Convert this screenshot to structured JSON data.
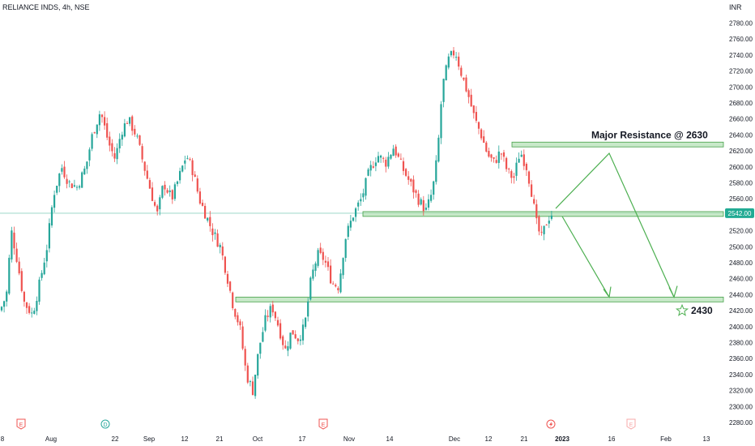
{
  "header": {
    "symbol_title": "RELIANCE INDS, 4h, NSE",
    "currency": "INR"
  },
  "colors": {
    "up": "#26a69a",
    "down": "#ef5350",
    "zone_fill": "#b2dfb4",
    "zone_stroke": "#43a047",
    "arrow": "#4caf50",
    "price_badge": "#22ab94",
    "axis_text": "#131722",
    "price_line": "#8fd3c0"
  },
  "chart_data": {
    "type": "candlestick",
    "title": "RELIANCE INDS, 4h, NSE",
    "y_unit": "INR",
    "ylim": [
      2272,
      2790
    ],
    "y_ticks": [
      2280,
      2300,
      2320,
      2340,
      2360,
      2380,
      2400,
      2420,
      2440,
      2460,
      2480,
      2500,
      2520,
      2540,
      2560,
      2580,
      2600,
      2620,
      2640,
      2660,
      2680,
      2700,
      2720,
      2740,
      2760,
      2780
    ],
    "x_ticks": [
      "8",
      "Aug",
      "22",
      "Sep",
      "12",
      "21",
      "Oct",
      "17",
      "Nov",
      "14",
      "Dec",
      "12",
      "21",
      "2023",
      "16",
      "Feb",
      "13"
    ],
    "last_price": {
      "value": 2542,
      "label": "2542.00"
    },
    "close_path": [
      [
        0,
        2420
      ],
      [
        8,
        2440
      ],
      [
        14,
        2520
      ],
      [
        20,
        2490
      ],
      [
        30,
        2430
      ],
      [
        40,
        2415
      ],
      [
        48,
        2450
      ],
      [
        58,
        2500
      ],
      [
        66,
        2565
      ],
      [
        76,
        2600
      ],
      [
        85,
        2580
      ],
      [
        95,
        2575
      ],
      [
        106,
        2600
      ],
      [
        114,
        2640
      ],
      [
        124,
        2670
      ],
      [
        134,
        2630
      ],
      [
        142,
        2610
      ],
      [
        150,
        2645
      ],
      [
        158,
        2660
      ],
      [
        168,
        2640
      ],
      [
        178,
        2600
      ],
      [
        186,
        2570
      ],
      [
        194,
        2540
      ],
      [
        202,
        2580
      ],
      [
        212,
        2560
      ],
      [
        222,
        2590
      ],
      [
        230,
        2615
      ],
      [
        238,
        2595
      ],
      [
        246,
        2560
      ],
      [
        254,
        2540
      ],
      [
        262,
        2520
      ],
      [
        272,
        2500
      ],
      [
        280,
        2465
      ],
      [
        288,
        2425
      ],
      [
        296,
        2400
      ],
      [
        304,
        2340
      ],
      [
        312,
        2320
      ],
      [
        320,
        2375
      ],
      [
        328,
        2410
      ],
      [
        336,
        2425
      ],
      [
        344,
        2400
      ],
      [
        352,
        2370
      ],
      [
        360,
        2395
      ],
      [
        368,
        2385
      ],
      [
        376,
        2400
      ],
      [
        384,
        2460
      ],
      [
        392,
        2490
      ],
      [
        400,
        2485
      ],
      [
        410,
        2455
      ],
      [
        418,
        2450
      ],
      [
        426,
        2510
      ],
      [
        436,
        2540
      ],
      [
        446,
        2560
      ],
      [
        456,
        2595
      ],
      [
        466,
        2615
      ],
      [
        476,
        2605
      ],
      [
        486,
        2625
      ],
      [
        496,
        2600
      ],
      [
        506,
        2580
      ],
      [
        516,
        2560
      ],
      [
        526,
        2545
      ],
      [
        534,
        2570
      ],
      [
        540,
        2615
      ],
      [
        546,
        2700
      ],
      [
        554,
        2735
      ],
      [
        562,
        2745
      ],
      [
        570,
        2715
      ],
      [
        578,
        2690
      ],
      [
        586,
        2660
      ],
      [
        594,
        2640
      ],
      [
        602,
        2615
      ],
      [
        610,
        2605
      ],
      [
        618,
        2620
      ],
      [
        626,
        2595
      ],
      [
        634,
        2585
      ],
      [
        642,
        2620
      ],
      [
        650,
        2600
      ],
      [
        656,
        2570
      ],
      [
        662,
        2530
      ],
      [
        668,
        2510
      ],
      [
        676,
        2535
      ],
      [
        684,
        2545
      ]
    ],
    "zones": [
      {
        "from": 2544,
        "to": 2538,
        "x_start": 448
      },
      {
        "from": 2631,
        "to": 2625,
        "x_start": 632
      },
      {
        "from": 2437,
        "to": 2431,
        "x_start": 291
      }
    ],
    "annotations": [
      {
        "text": "Major Resistance @ 2630",
        "price": 2640
      },
      {
        "text": "2430",
        "price": 2421
      }
    ],
    "event_markers": [
      {
        "label": "E",
        "kind": "earnings"
      },
      {
        "label": "D",
        "kind": "dividend"
      },
      {
        "label": "E",
        "kind": "earnings"
      },
      {
        "label": "",
        "kind": "split"
      },
      {
        "label": "E",
        "kind": "earnings-future"
      }
    ]
  }
}
